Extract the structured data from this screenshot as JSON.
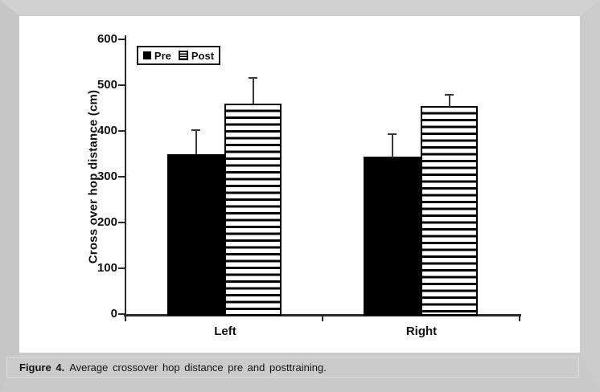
{
  "figure": {
    "caption_label": "Figure 4.",
    "caption_text": "Average crossover hop distance pre and posttraining."
  },
  "chart_data": {
    "type": "bar",
    "title": "",
    "categories": [
      "Left",
      "Right"
    ],
    "series": [
      {
        "name": "Pre",
        "values": [
          350,
          343
        ],
        "upper_errors": [
          52,
          50
        ],
        "style": "solid-black"
      },
      {
        "name": "Post",
        "values": [
          460,
          454
        ],
        "upper_errors": [
          56,
          25
        ],
        "style": "white-with-horizontal-black-stripes"
      }
    ],
    "xlabel": "",
    "ylabel": "Cross over hop distance (cm)",
    "ylim": [
      0,
      600
    ],
    "ytick_interval": 100,
    "yticks": [
      0,
      100,
      200,
      300,
      400,
      500,
      600
    ],
    "grid": false,
    "error_bars": "upper-only",
    "legend": {
      "position": "top-left-inside",
      "entries": [
        "Pre",
        "Post"
      ]
    },
    "colors": {
      "pre_fill": "#000000",
      "post_fill": "#ffffff",
      "post_stripe": "#000000",
      "axis": "#2a2a2a",
      "error_bar": "#3a3a3a",
      "panel_bg": "#ffffff",
      "frame_bg": "#cbcbcb"
    }
  }
}
